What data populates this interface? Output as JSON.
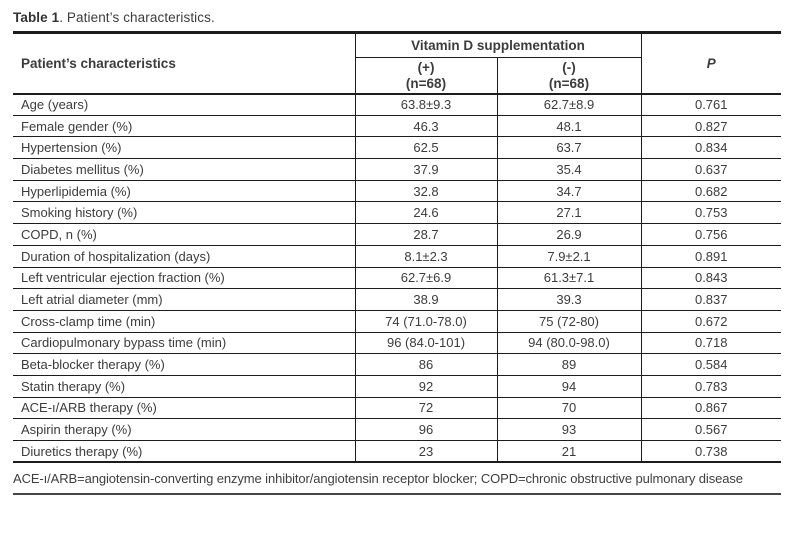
{
  "title": {
    "bold": "Table 1",
    "rest": ". Patient’s characteristics."
  },
  "table": {
    "col1_header": "Patient’s characteristics",
    "group_header": "Vitamin D supplementation",
    "plus_header": {
      "line1": "(+)",
      "line2": "(n=68)"
    },
    "minus_header": {
      "line1": "(-)",
      "line2": "(n=68)"
    },
    "p_header": "P",
    "rows": [
      {
        "label": "Age (years)",
        "plus": "63.8±9.3",
        "minus": "62.7±8.9",
        "p": "0.761"
      },
      {
        "label": "Female gender (%)",
        "plus": "46.3",
        "minus": "48.1",
        "p": "0.827"
      },
      {
        "label": "Hypertension (%)",
        "plus": "62.5",
        "minus": "63.7",
        "p": "0.834"
      },
      {
        "label": "Diabetes mellitus (%)",
        "plus": "37.9",
        "minus": "35.4",
        "p": "0.637"
      },
      {
        "label": "Hyperlipidemia (%)",
        "plus": "32.8",
        "minus": "34.7",
        "p": "0.682"
      },
      {
        "label": "Smoking history (%)",
        "plus": "24.6",
        "minus": "27.1",
        "p": "0.753"
      },
      {
        "label": "COPD, n (%)",
        "plus": "28.7",
        "minus": "26.9",
        "p": "0.756"
      },
      {
        "label": "Duration of hospitalization (days)",
        "plus": "8.1±2.3",
        "minus": "7.9±2.1",
        "p": "0.891"
      },
      {
        "label": "Left ventricular ejection fraction (%)",
        "plus": "62.7±6.9",
        "minus": "61.3±7.1",
        "p": "0.843"
      },
      {
        "label": "Left atrial diameter (mm)",
        "plus": "38.9",
        "minus": "39.3",
        "p": "0.837"
      },
      {
        "label": "Cross-clamp time (min)",
        "plus": "74 (71.0-78.0)",
        "minus": "75 (72-80)",
        "p": "0.672"
      },
      {
        "label": "Cardiopulmonary bypass time (min)",
        "plus": "96 (84.0-101)",
        "minus": "94 (80.0-98.0)",
        "p": "0.718"
      },
      {
        "label": "Beta-blocker therapy (%)",
        "plus": "86",
        "minus": "89",
        "p": "0.584"
      },
      {
        "label": "Statin therapy (%)",
        "plus": "92",
        "minus": "94",
        "p": "0.783"
      },
      {
        "label": "ACE-ı/ARB therapy (%)",
        "plus": "72",
        "minus": "70",
        "p": "0.867"
      },
      {
        "label": "Aspirin therapy (%)",
        "plus": "96",
        "minus": "93",
        "p": "0.567"
      },
      {
        "label": "Diuretics therapy (%)",
        "plus": "23",
        "minus": "21",
        "p": "0.738"
      }
    ]
  },
  "footnote": "ACE-ı/ARB=angiotensin-converting enzyme inhibitor/angiotensin receptor blocker; COPD=chronic obstructive pulmonary disease",
  "colors": {
    "text": "#3c3c3c",
    "border": "#1c1c1c",
    "background": "#ffffff"
  }
}
